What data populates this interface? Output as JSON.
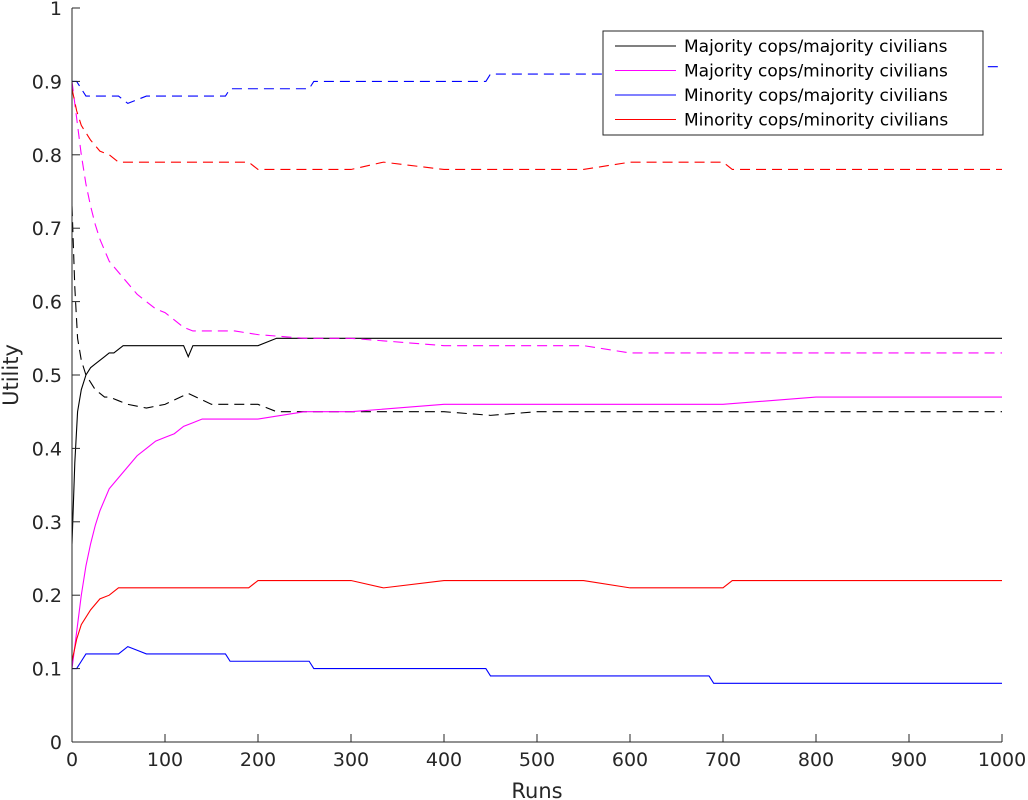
{
  "chart_data": {
    "type": "line",
    "title": "",
    "xlabel": "Runs",
    "ylabel": "Utility",
    "xlim": [
      0,
      1000
    ],
    "ylim": [
      0,
      1
    ],
    "xticks": [
      "0",
      "100",
      "200",
      "300",
      "400",
      "500",
      "600",
      "700",
      "800",
      "900",
      "1000"
    ],
    "yticks": [
      "0",
      "0.1",
      "0.2",
      "0.3",
      "0.4",
      "0.5",
      "0.6",
      "0.7",
      "0.8",
      "0.9",
      "1"
    ],
    "grid": false,
    "legend_position": "top-right",
    "line_style_note": "",
    "series": [
      {
        "name": "Majority cops/majority civilians",
        "color": "#000000",
        "style": "solid",
        "x": [
          0,
          3,
          6,
          10,
          15,
          20,
          25,
          30,
          35,
          40,
          45,
          50,
          55,
          60,
          80,
          100,
          110,
          120,
          125,
          130,
          140,
          150,
          200,
          220,
          250,
          300,
          400,
          450,
          500,
          600,
          700,
          800,
          900,
          1000
        ],
        "y": [
          0.27,
          0.38,
          0.45,
          0.48,
          0.5,
          0.51,
          0.515,
          0.52,
          0.525,
          0.53,
          0.53,
          0.535,
          0.54,
          0.54,
          0.54,
          0.54,
          0.54,
          0.54,
          0.525,
          0.54,
          0.54,
          0.54,
          0.54,
          0.55,
          0.55,
          0.55,
          0.55,
          0.55,
          0.55,
          0.55,
          0.55,
          0.55,
          0.55,
          0.55
        ]
      },
      {
        "name": "",
        "color": "#000000",
        "style": "dashed",
        "x": [
          0,
          3,
          6,
          10,
          15,
          20,
          25,
          30,
          35,
          40,
          50,
          60,
          80,
          100,
          125,
          150,
          200,
          220,
          250,
          300,
          400,
          450,
          500,
          600,
          700,
          800,
          900,
          1000
        ],
        "y": [
          0.73,
          0.62,
          0.55,
          0.52,
          0.5,
          0.49,
          0.48,
          0.475,
          0.47,
          0.47,
          0.465,
          0.46,
          0.455,
          0.46,
          0.475,
          0.46,
          0.46,
          0.45,
          0.45,
          0.45,
          0.45,
          0.445,
          0.45,
          0.45,
          0.45,
          0.45,
          0.45,
          0.45
        ]
      },
      {
        "name": "Majority cops/minority civilians",
        "color": "#ff00ff",
        "style": "solid",
        "x": [
          0,
          5,
          10,
          15,
          20,
          25,
          30,
          40,
          50,
          60,
          70,
          80,
          90,
          100,
          110,
          120,
          130,
          140,
          150,
          175,
          200,
          250,
          300,
          400,
          500,
          550,
          600,
          700,
          800,
          900,
          1000
        ],
        "y": [
          0.1,
          0.15,
          0.2,
          0.24,
          0.27,
          0.295,
          0.315,
          0.345,
          0.36,
          0.375,
          0.39,
          0.4,
          0.41,
          0.415,
          0.42,
          0.43,
          0.435,
          0.44,
          0.44,
          0.44,
          0.44,
          0.45,
          0.45,
          0.46,
          0.46,
          0.46,
          0.46,
          0.46,
          0.47,
          0.47,
          0.47
        ]
      },
      {
        "name": "",
        "color": "#ff00ff",
        "style": "dashed",
        "x": [
          0,
          5,
          10,
          15,
          20,
          25,
          30,
          40,
          50,
          60,
          70,
          80,
          90,
          100,
          110,
          120,
          130,
          140,
          150,
          175,
          200,
          250,
          300,
          400,
          500,
          550,
          600,
          700,
          800,
          900,
          1000
        ],
        "y": [
          0.9,
          0.85,
          0.8,
          0.76,
          0.73,
          0.705,
          0.685,
          0.655,
          0.64,
          0.625,
          0.61,
          0.6,
          0.59,
          0.585,
          0.575,
          0.565,
          0.56,
          0.56,
          0.56,
          0.56,
          0.555,
          0.55,
          0.55,
          0.54,
          0.54,
          0.54,
          0.53,
          0.53,
          0.53,
          0.53,
          0.53
        ]
      },
      {
        "name": "Minority cops/majority civilians",
        "color": "#0000ff",
        "style": "solid",
        "x": [
          0,
          5,
          10,
          15,
          30,
          50,
          60,
          70,
          80,
          100,
          165,
          170,
          255,
          260,
          445,
          450,
          685,
          690,
          1000
        ],
        "y": [
          0.1,
          0.1,
          0.11,
          0.12,
          0.12,
          0.12,
          0.13,
          0.125,
          0.12,
          0.12,
          0.12,
          0.11,
          0.11,
          0.1,
          0.1,
          0.09,
          0.09,
          0.08,
          0.08
        ]
      },
      {
        "name": "",
        "color": "#0000ff",
        "style": "dashed",
        "x": [
          0,
          5,
          10,
          15,
          30,
          50,
          60,
          70,
          80,
          100,
          165,
          170,
          255,
          260,
          445,
          450,
          685,
          690,
          1000
        ],
        "y": [
          0.9,
          0.9,
          0.89,
          0.88,
          0.88,
          0.88,
          0.87,
          0.875,
          0.88,
          0.88,
          0.88,
          0.89,
          0.89,
          0.9,
          0.9,
          0.91,
          0.91,
          0.92,
          0.92
        ]
      },
      {
        "name": "Minority cops/minority civilians",
        "color": "#ff0000",
        "style": "solid",
        "x": [
          0,
          5,
          10,
          20,
          30,
          40,
          50,
          55,
          100,
          190,
          200,
          250,
          300,
          335,
          400,
          500,
          550,
          600,
          700,
          710,
          800,
          830,
          900,
          1000
        ],
        "y": [
          0.11,
          0.14,
          0.16,
          0.18,
          0.195,
          0.2,
          0.21,
          0.21,
          0.21,
          0.21,
          0.22,
          0.22,
          0.22,
          0.21,
          0.22,
          0.22,
          0.22,
          0.21,
          0.21,
          0.22,
          0.22,
          0.22,
          0.22,
          0.22
        ]
      },
      {
        "name": "",
        "color": "#ff0000",
        "style": "dashed",
        "x": [
          0,
          5,
          10,
          20,
          30,
          40,
          50,
          55,
          100,
          190,
          200,
          250,
          300,
          335,
          400,
          500,
          550,
          600,
          700,
          710,
          800,
          830,
          900,
          1000
        ],
        "y": [
          0.89,
          0.86,
          0.84,
          0.82,
          0.805,
          0.8,
          0.79,
          0.79,
          0.79,
          0.79,
          0.78,
          0.78,
          0.78,
          0.79,
          0.78,
          0.78,
          0.78,
          0.79,
          0.79,
          0.78,
          0.78,
          0.78,
          0.78,
          0.78
        ]
      }
    ]
  }
}
